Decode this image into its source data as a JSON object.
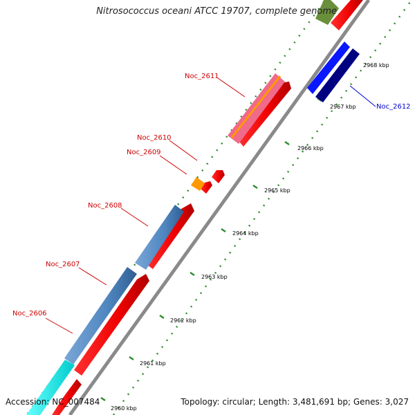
{
  "title": "Nitrosococcus oceani ATCC 19707, complete genome",
  "footer": {
    "accession": "Accession: NC_007484",
    "topology": "Topology: circular; Length: 3,481,691 bp; Genes: 3,027"
  },
  "colors": {
    "backbone": "#8a8a8a",
    "tick": "#2e8b2e",
    "forward_gene": "#ff0000",
    "label_red": "#cc0000",
    "label_blue": "#0000cc"
  },
  "scale_labels": [
    "2960 kbp",
    "2961 kbp",
    "2962 kbp",
    "2963 kbp",
    "2964 kbp",
    "2965 kbp",
    "2966 kbp",
    "2967 kbp",
    "2968 kbp"
  ],
  "gene_labels": [
    {
      "name": "Noc_2606",
      "color": "#cc0000"
    },
    {
      "name": "Noc_2607",
      "color": "#cc0000"
    },
    {
      "name": "Noc_2608",
      "color": "#cc0000"
    },
    {
      "name": "Noc_2609",
      "color": "#cc0000"
    },
    {
      "name": "Noc_2610",
      "color": "#cc0000"
    },
    {
      "name": "Noc_2611",
      "color": "#cc0000"
    },
    {
      "name": "Noc_2612",
      "color": "#0000cc"
    }
  ]
}
